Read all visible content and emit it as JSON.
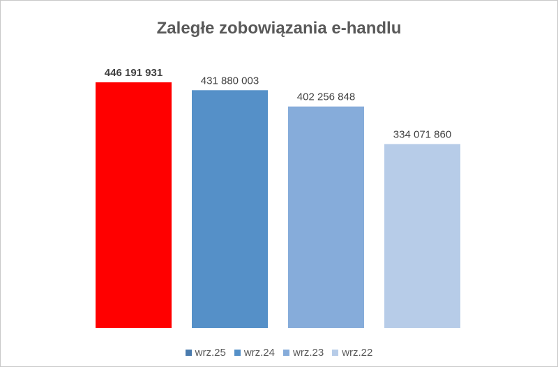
{
  "chart_data": {
    "type": "bar",
    "title": "Zaległe zobowiązania e-handlu",
    "categories": [
      "wrz.25",
      "wrz.24",
      "wrz.23",
      "wrz.22"
    ],
    "values": [
      446191931,
      431880003,
      402256848,
      334071860
    ],
    "data_labels": [
      "446 191 931",
      "431 880 003",
      "402 256 848",
      "334 071 860"
    ],
    "bar_colors": [
      "#ff0000",
      "#5590c8",
      "#86acda",
      "#b7cce8"
    ],
    "legend_colors": [
      "#4a7bad",
      "#5590c8",
      "#86acda",
      "#b7cce8"
    ],
    "highlight_bold_label_index": 0,
    "ylim": [
      0,
      446191931
    ],
    "grid": false,
    "y_axis_visible": false,
    "legend": "bottom"
  }
}
